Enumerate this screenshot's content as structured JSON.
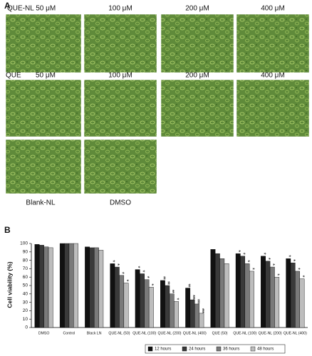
{
  "panel_a": {
    "label": "A",
    "row1": [
      "QUE-NL 50 μM",
      "100 μM",
      "200 μM",
      "400 μM"
    ],
    "row2": [
      "QUE",
      "50 μM",
      "100 μM",
      "200 μM",
      "400 μM"
    ],
    "row3": [
      "Blank-NL",
      "DMSO"
    ]
  },
  "panel_b": {
    "label": "B"
  },
  "chart_data": {
    "type": "bar",
    "ylabel": "Cell viability (%)",
    "categories": [
      "DMSO",
      "Control",
      "Black LN",
      "QUE-NL (50)",
      "QUE-NL (100)",
      "QUE-NL (200)",
      "QUE-NL (400)",
      "QUE (50)",
      "QUE-NL (100)",
      "QUE-NL (200)",
      "QUE-NL (400)"
    ],
    "series": [
      {
        "name": "12 hours",
        "color": "#111111",
        "values": [
          99,
          100,
          96,
          76,
          69,
          56,
          47,
          93,
          88,
          85,
          82
        ],
        "significance": [
          null,
          null,
          null,
          "*",
          "*",
          "**",
          "**",
          null,
          "*",
          "*",
          "*"
        ]
      },
      {
        "name": "24 hours",
        "color": "#3a3a3a",
        "values": [
          98,
          100,
          95,
          72,
          64,
          50,
          33,
          88,
          85,
          79,
          77
        ],
        "significance": [
          null,
          null,
          null,
          "*",
          "*",
          "**",
          "***",
          null,
          "*",
          "*",
          "*"
        ]
      },
      {
        "name": "36 hours",
        "color": "#7a7a7a",
        "values": [
          96,
          100,
          95,
          62,
          57,
          40,
          28,
          82,
          76,
          72,
          67
        ],
        "significance": [
          null,
          null,
          null,
          "*",
          "*",
          "**",
          "***",
          null,
          "*",
          "*",
          "*"
        ]
      },
      {
        "name": "48 hours",
        "color": "#bdbdbd",
        "values": [
          95,
          100,
          92,
          53,
          48,
          31,
          17,
          76,
          67,
          60,
          58
        ],
        "significance": [
          null,
          null,
          null,
          "*",
          "*",
          "*",
          "***",
          null,
          "*",
          "*",
          "*"
        ]
      }
    ],
    "ylim": [
      0,
      100
    ],
    "yticks": [
      0,
      10,
      20,
      30,
      40,
      50,
      60,
      70,
      80,
      90,
      100
    ],
    "grid": false,
    "legend": "bottom"
  }
}
